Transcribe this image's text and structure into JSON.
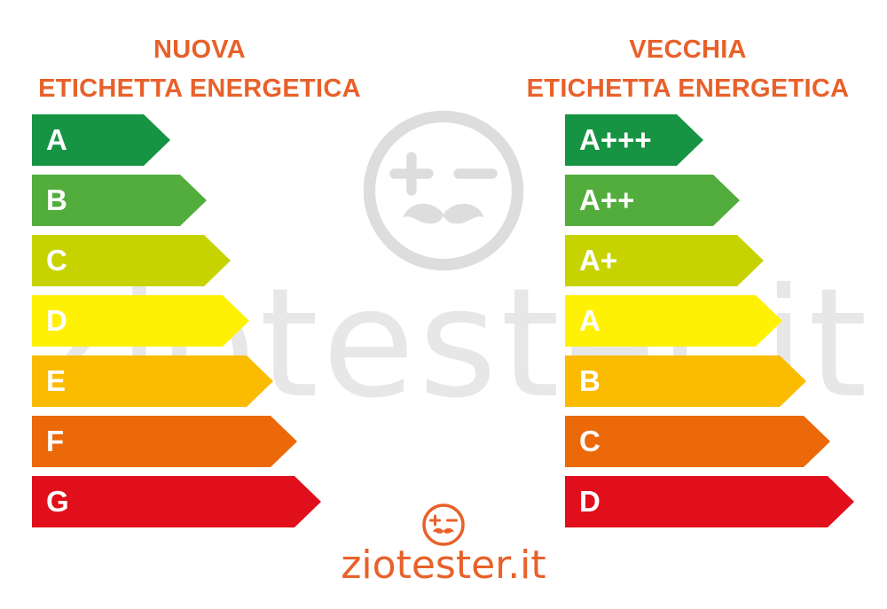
{
  "titles": {
    "left": [
      "NUOVA",
      "ETICHETTA ENERGETICA"
    ],
    "right": [
      "VECCHIA",
      "ETICHETTA ENERGETICA"
    ]
  },
  "new_label": {
    "classes": [
      {
        "label": "A",
        "color": "#179443"
      },
      {
        "label": "B",
        "color": "#52ad3c"
      },
      {
        "label": "C",
        "color": "#c7d301"
      },
      {
        "label": "D",
        "color": "#fff103"
      },
      {
        "label": "E",
        "color": "#fbbb00"
      },
      {
        "label": "F",
        "color": "#eb6909"
      },
      {
        "label": "G",
        "color": "#e10f1b"
      }
    ]
  },
  "old_label": {
    "classes": [
      {
        "label": "A+++",
        "color": "#179443"
      },
      {
        "label": "A++",
        "color": "#52ad3c"
      },
      {
        "label": "A+",
        "color": "#c7d301"
      },
      {
        "label": "A",
        "color": "#fff103"
      },
      {
        "label": "B",
        "color": "#fbbb00"
      },
      {
        "label": "C",
        "color": "#eb6909"
      },
      {
        "label": "D",
        "color": "#e10f1b"
      }
    ]
  },
  "watermark": {
    "text": "ziotester.it",
    "icon": "mustache-face-icon"
  },
  "logo": {
    "text": "ziotester.it",
    "icon": "mustache-face-icon",
    "color": "#e8612a"
  }
}
